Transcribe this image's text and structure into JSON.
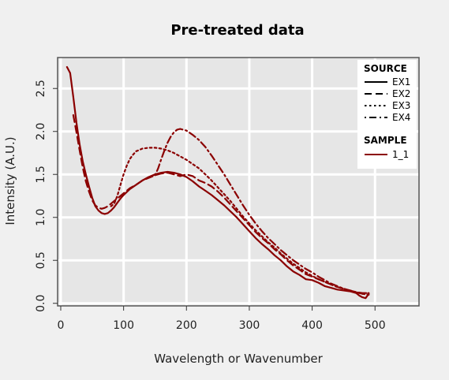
{
  "chart_data": {
    "type": "line",
    "title": "Pre-treated data",
    "xlabel": "Wavelength or Wavenumber",
    "ylabel": "Intensity (A.U.)",
    "xlim": [
      -5,
      570
    ],
    "ylim": [
      -0.03,
      2.86
    ],
    "x_ticks": [
      0,
      100,
      200,
      300,
      400,
      500
    ],
    "y_ticks": [
      0.0,
      0.5,
      1.0,
      1.5,
      2.0,
      2.5
    ],
    "x_tick_labels": [
      "0",
      "100",
      "200",
      "300",
      "400",
      "500"
    ],
    "y_tick_labels": [
      "0.0",
      "0.5",
      "1.0",
      "1.5",
      "2.0",
      "2.5"
    ],
    "grid": true,
    "legend": {
      "placement": "top-right",
      "source_title": "SOURCE",
      "source_entries": [
        "EX1",
        "EX2",
        "EX3",
        "EX4"
      ],
      "sample_title": "SAMPLE",
      "sample_entries": [
        "1_1"
      ]
    },
    "colors": {
      "series": "#8b0000",
      "background": "#e6e6e6",
      "grid": "#ffffff",
      "frame": "#555555"
    },
    "series": [
      {
        "name": "EX1",
        "line_style": "solid",
        "x": [
          10,
          15,
          20,
          25,
          30,
          35,
          40,
          45,
          50,
          55,
          60,
          65,
          70,
          75,
          80,
          85,
          90,
          95,
          100,
          110,
          120,
          130,
          140,
          150,
          160,
          170,
          180,
          190,
          200,
          210,
          220,
          230,
          240,
          250,
          260,
          270,
          280,
          290,
          300,
          310,
          320,
          330,
          340,
          350,
          360,
          370,
          380,
          390,
          400,
          410,
          420,
          430,
          440,
          450,
          460,
          470,
          475,
          480,
          485,
          490
        ],
        "y": [
          2.75,
          2.68,
          2.4,
          2.1,
          1.85,
          1.65,
          1.5,
          1.36,
          1.23,
          1.13,
          1.08,
          1.05,
          1.04,
          1.05,
          1.08,
          1.12,
          1.17,
          1.22,
          1.26,
          1.33,
          1.38,
          1.43,
          1.47,
          1.5,
          1.52,
          1.53,
          1.52,
          1.5,
          1.47,
          1.42,
          1.36,
          1.31,
          1.26,
          1.2,
          1.14,
          1.07,
          1.0,
          0.92,
          0.84,
          0.76,
          0.69,
          0.63,
          0.56,
          0.5,
          0.43,
          0.37,
          0.33,
          0.28,
          0.27,
          0.24,
          0.2,
          0.18,
          0.16,
          0.15,
          0.14,
          0.12,
          0.09,
          0.07,
          0.06,
          0.11
        ]
      },
      {
        "name": "EX2",
        "line_style": "dashed",
        "x": [
          20,
          25,
          30,
          35,
          40,
          45,
          50,
          55,
          60,
          65,
          70,
          75,
          80,
          85,
          90,
          95,
          100,
          110,
          120,
          130,
          140,
          150,
          160,
          170,
          180,
          190,
          200,
          210,
          220,
          230,
          240,
          250,
          260,
          270,
          280,
          290,
          300,
          310,
          320,
          330,
          340,
          350,
          360,
          370,
          380,
          390,
          400,
          410,
          420,
          430,
          440,
          450,
          460,
          470,
          480,
          490
        ],
        "y": [
          2.19,
          1.99,
          1.78,
          1.58,
          1.42,
          1.3,
          1.2,
          1.14,
          1.11,
          1.1,
          1.11,
          1.13,
          1.16,
          1.19,
          1.22,
          1.25,
          1.28,
          1.34,
          1.38,
          1.43,
          1.46,
          1.49,
          1.51,
          1.52,
          1.5,
          1.48,
          1.5,
          1.48,
          1.43,
          1.4,
          1.36,
          1.3,
          1.23,
          1.15,
          1.07,
          0.99,
          0.91,
          0.83,
          0.76,
          0.7,
          0.63,
          0.57,
          0.5,
          0.44,
          0.39,
          0.34,
          0.31,
          0.28,
          0.25,
          0.22,
          0.19,
          0.17,
          0.15,
          0.13,
          0.11,
          0.12
        ]
      },
      {
        "name": "EX3",
        "line_style": "dotted",
        "x": [
          80,
          85,
          90,
          95,
          100,
          105,
          110,
          115,
          120,
          130,
          140,
          150,
          160,
          170,
          180,
          190,
          200,
          210,
          220,
          230,
          240,
          250,
          260,
          270,
          280,
          290,
          300,
          310,
          320,
          330,
          340,
          350,
          360,
          370,
          380,
          390,
          400,
          410,
          420,
          430,
          440,
          450,
          460,
          470,
          480,
          490
        ],
        "y": [
          1.13,
          1.16,
          1.25,
          1.38,
          1.5,
          1.6,
          1.68,
          1.73,
          1.77,
          1.8,
          1.81,
          1.81,
          1.8,
          1.78,
          1.75,
          1.71,
          1.67,
          1.62,
          1.57,
          1.5,
          1.43,
          1.35,
          1.27,
          1.19,
          1.1,
          1.01,
          0.93,
          0.85,
          0.78,
          0.71,
          0.65,
          0.58,
          0.52,
          0.46,
          0.41,
          0.36,
          0.32,
          0.28,
          0.25,
          0.22,
          0.19,
          0.17,
          0.15,
          0.13,
          0.11,
          0.1
        ]
      },
      {
        "name": "EX4",
        "line_style": "dotdash",
        "x": [
          150,
          155,
          160,
          165,
          170,
          175,
          180,
          185,
          190,
          195,
          200,
          210,
          220,
          230,
          240,
          250,
          260,
          270,
          280,
          290,
          300,
          310,
          320,
          330,
          340,
          350,
          360,
          370,
          380,
          390,
          400,
          410,
          420,
          430,
          440,
          450,
          460,
          470,
          480,
          490
        ],
        "y": [
          1.49,
          1.57,
          1.68,
          1.78,
          1.87,
          1.94,
          1.99,
          2.02,
          2.03,
          2.02,
          2.01,
          1.96,
          1.9,
          1.82,
          1.72,
          1.61,
          1.5,
          1.38,
          1.26,
          1.14,
          1.03,
          0.93,
          0.84,
          0.76,
          0.69,
          0.62,
          0.56,
          0.5,
          0.45,
          0.4,
          0.36,
          0.31,
          0.27,
          0.23,
          0.2,
          0.17,
          0.15,
          0.13,
          0.12,
          0.12
        ]
      }
    ]
  }
}
